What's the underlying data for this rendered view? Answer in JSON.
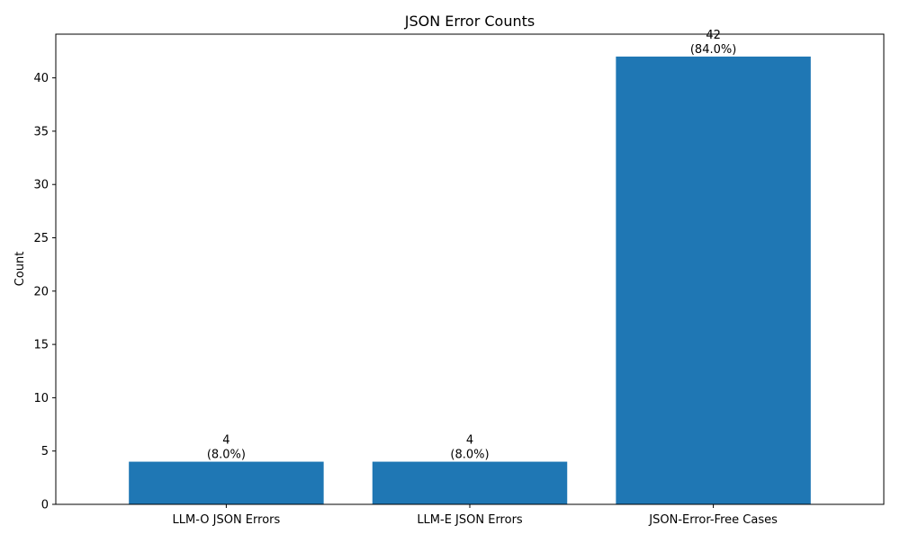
{
  "chart_data": {
    "type": "bar",
    "title": "JSON Error Counts",
    "xlabel": "",
    "ylabel": "Count",
    "categories": [
      "LLM-O JSON Errors",
      "LLM-E JSON Errors",
      "JSON-Error-Free Cases"
    ],
    "values": [
      4,
      4,
      42
    ],
    "value_labels": [
      "4",
      "4",
      "42"
    ],
    "percent_labels": [
      "(8.0%)",
      "(8.0%)",
      "(84.0%)"
    ],
    "ylim": [
      0,
      44.1
    ],
    "yticks": [
      0,
      5,
      10,
      15,
      20,
      25,
      30,
      35,
      40
    ],
    "ytick_labels": [
      "0",
      "5",
      "10",
      "15",
      "20",
      "25",
      "30",
      "35",
      "40"
    ],
    "bar_color": "#1f77b4",
    "grid": false,
    "legend": "none"
  }
}
